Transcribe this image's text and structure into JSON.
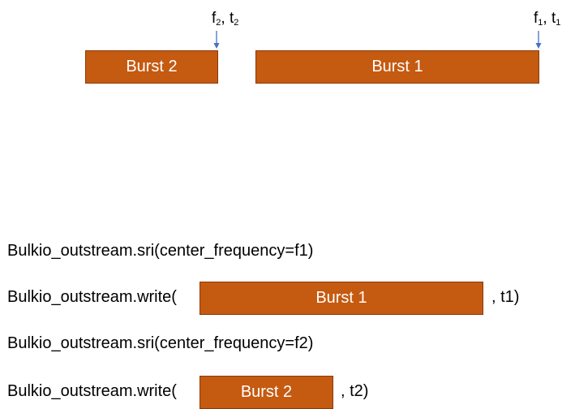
{
  "colors": {
    "burst_fill": "#c55a11",
    "burst_border": "#8a3a06",
    "arrow": "#4472c4",
    "text": "#000000"
  },
  "timeline": {
    "marker_2": {
      "f": "f",
      "f_sub": "2",
      "sep": ", ",
      "t": "t",
      "t_sub": "2"
    },
    "marker_1": {
      "f": "f",
      "f_sub": "1",
      "sep": ", ",
      "t": "t",
      "t_sub": "1"
    },
    "burst_2_label": "Burst 2",
    "burst_1_label": "Burst 1"
  },
  "code": {
    "line1": "Bulkio_outstream.sri(center_frequency=f1)",
    "line2_prefix": "Bulkio_outstream.write(",
    "line2_burst": "Burst 1",
    "line2_suffix": ", t1)",
    "line3": "Bulkio_outstream.sri(center_frequency=f2)",
    "line4_prefix": "Bulkio_outstream.write(",
    "line4_burst": "Burst 2",
    "line4_suffix": ", t2)"
  }
}
